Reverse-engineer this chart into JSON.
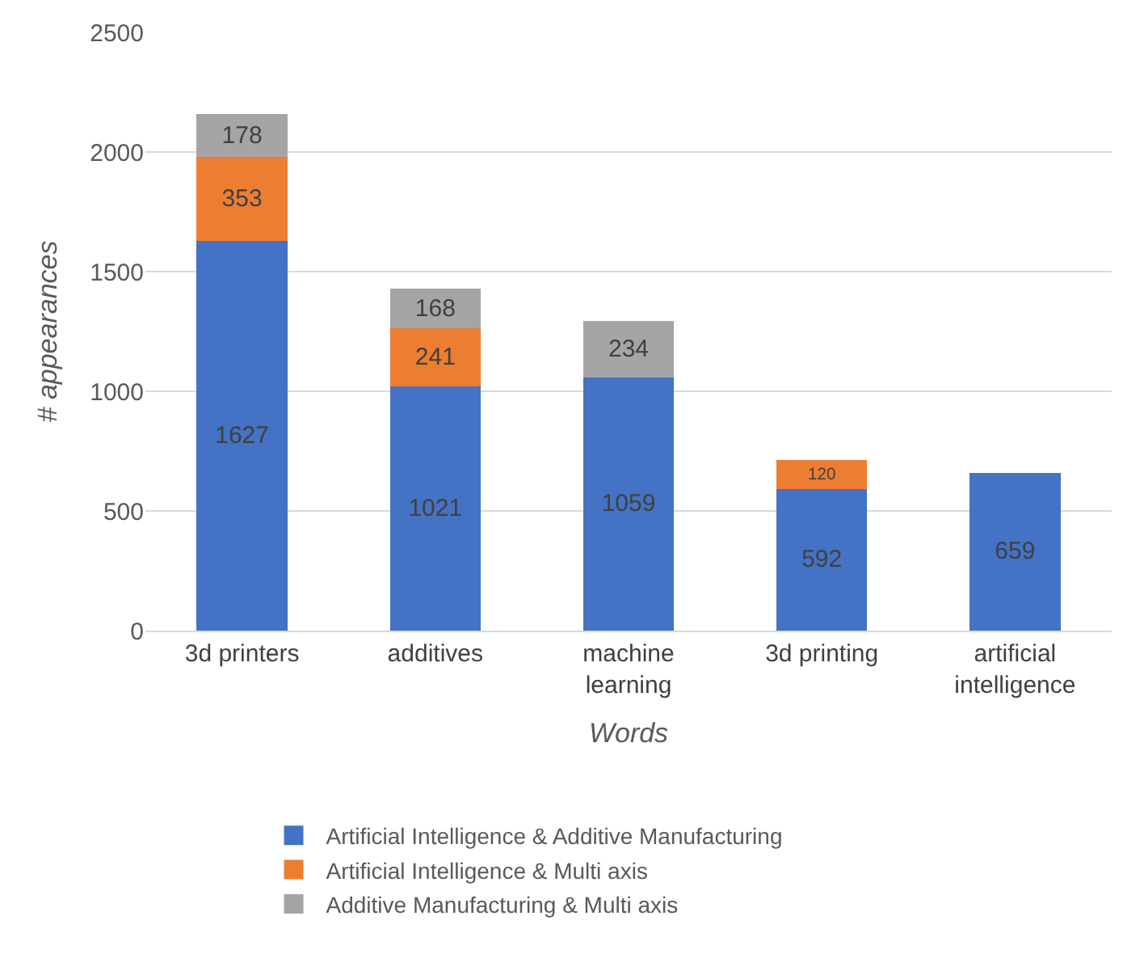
{
  "chart_data": {
    "type": "bar",
    "stacked": true,
    "xlabel": "Words",
    "ylabel": "# appearances",
    "categories": [
      "3d printers",
      "additives",
      "machine learning",
      "3d printing",
      "artificial intelligence"
    ],
    "series": [
      {
        "name": "Artificial Intelligence & Additive Manufacturing",
        "color": "#4472c4",
        "values": [
          1627,
          1021,
          1059,
          592,
          659
        ]
      },
      {
        "name": "Artificial Intelligence & Multi axis",
        "color": "#ed7d31",
        "values": [
          353,
          241,
          null,
          120,
          null
        ]
      },
      {
        "name": "Additive Manufacturing & Multi axis",
        "color": "#a5a5a5",
        "values": [
          178,
          168,
          234,
          null,
          null
        ]
      }
    ],
    "ylim": [
      0,
      2500
    ],
    "yticks": [
      0,
      500,
      1000,
      1500,
      2000,
      2500
    ],
    "grid": "y",
    "legend": "bottom",
    "data_labels": true
  }
}
